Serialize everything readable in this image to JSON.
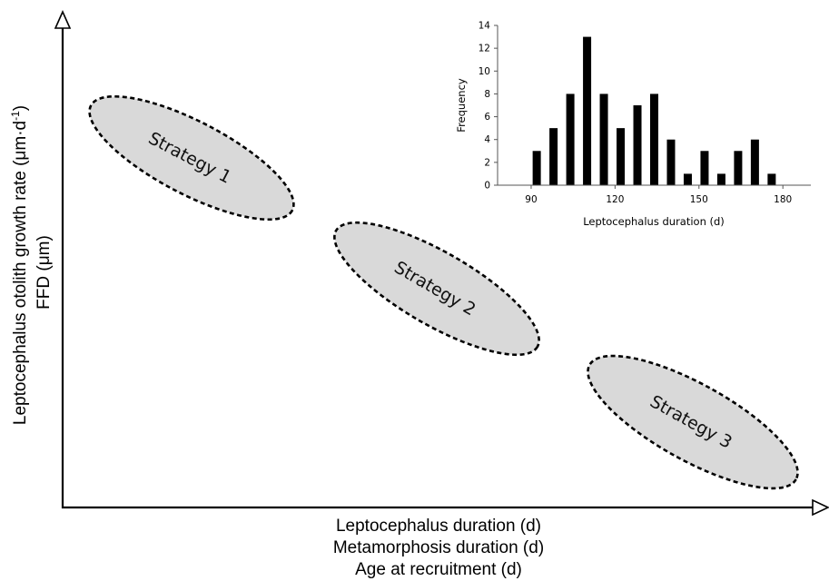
{
  "main": {
    "y_label_line1": "Leptocephalus otolith growth rate (μm·d",
    "y_label_sup": "-1",
    "y_label_close": ")",
    "y_label_line2": "FFD (μm)",
    "x_labels": [
      "Leptocephalus duration (d)",
      "Metamorphosis duration (d)",
      "Age at recruitment (d)"
    ],
    "strategies": [
      "Strategy 1",
      "Strategy 2",
      "Strategy 3"
    ]
  },
  "chart_data": {
    "type": "bar",
    "title": "",
    "xlabel": "Leptocephalus duration (d)",
    "ylabel": "Frequency",
    "x": [
      92,
      98,
      104,
      110,
      116,
      122,
      128,
      134,
      140,
      146,
      152,
      158,
      164,
      170,
      176
    ],
    "values": [
      3,
      5,
      8,
      13,
      8,
      5,
      7,
      8,
      4,
      1,
      3,
      1,
      3,
      4,
      1
    ],
    "xlim": [
      78,
      190
    ],
    "xticks": [
      90,
      120,
      150,
      180
    ],
    "ylim": [
      0,
      14
    ],
    "yticks": [
      0,
      2,
      4,
      6,
      8,
      10,
      12,
      14
    ],
    "grid": false,
    "colors": {
      "bars": "#000000"
    }
  }
}
